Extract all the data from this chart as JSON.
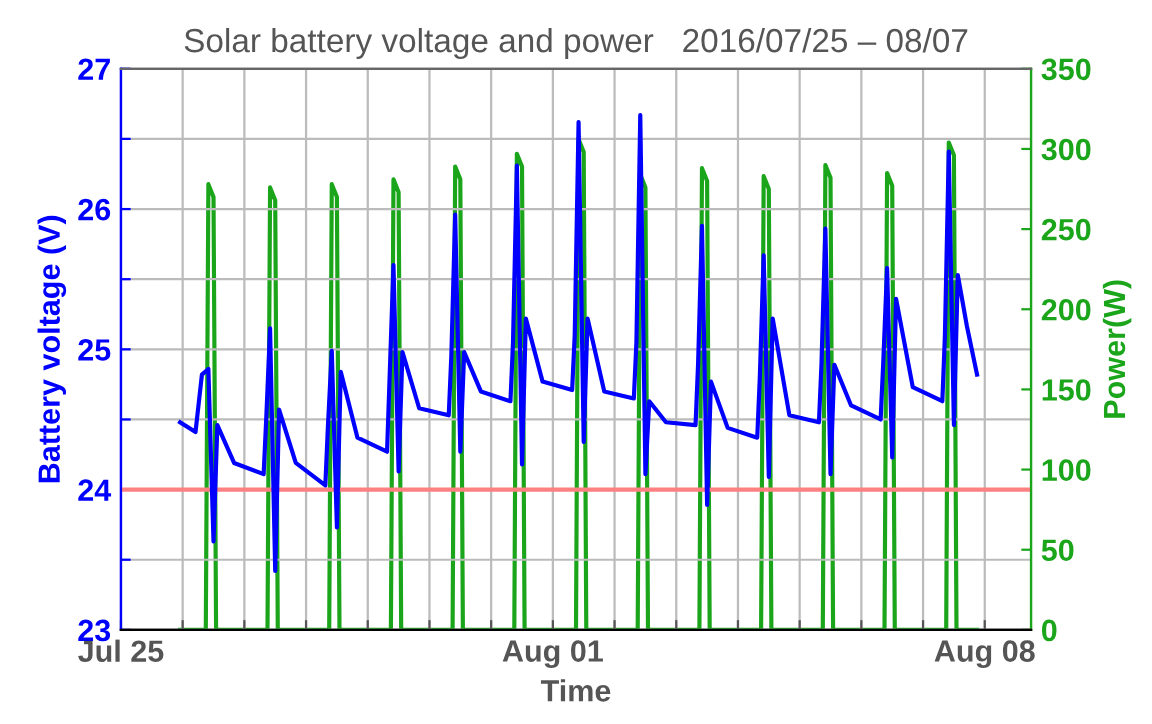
{
  "chart_data": {
    "type": "line",
    "title": "Solar battery voltage and power   2016/07/25 – 08/07",
    "xlabel": "Time",
    "ylabel": "Battery voltage (V)",
    "y2label": "Power(W)",
    "xlim": [
      "2016-07-25",
      "2016-08-08T18:00"
    ],
    "xticks": [
      {
        "value": "2016-07-25",
        "label": "Jul 25"
      },
      {
        "value": "2016-07-26",
        "label": null
      },
      {
        "value": "2016-07-27",
        "label": null
      },
      {
        "value": "2016-07-28",
        "label": null
      },
      {
        "value": "2016-07-29",
        "label": null
      },
      {
        "value": "2016-07-30",
        "label": null
      },
      {
        "value": "2016-07-31",
        "label": null
      },
      {
        "value": "2016-08-01",
        "label": "Aug 01"
      },
      {
        "value": "2016-08-02",
        "label": null
      },
      {
        "value": "2016-08-03",
        "label": null
      },
      {
        "value": "2016-08-04",
        "label": null
      },
      {
        "value": "2016-08-05",
        "label": null
      },
      {
        "value": "2016-08-06",
        "label": null
      },
      {
        "value": "2016-08-07",
        "label": null
      },
      {
        "value": "2016-08-08",
        "label": "Aug 08"
      }
    ],
    "ylim": [
      23,
      27
    ],
    "yticks": [
      23,
      {
        "value": 23.5,
        "label": null
      },
      24,
      {
        "value": 24.5,
        "label": null
      },
      25,
      {
        "value": 25.5,
        "label": null
      },
      26,
      {
        "value": 26.5,
        "label": null
      },
      27
    ],
    "y2lim": [
      0,
      350
    ],
    "y2ticks": [
      0,
      50,
      100,
      150,
      200,
      250,
      300,
      350
    ],
    "grid": true,
    "ref_lines": [
      {
        "axis": "y",
        "value": 24,
        "color": "#ff8080"
      }
    ],
    "series": [
      {
        "color": "#0000ff",
        "x": [
          "2016-07-25T23:00",
          "2016-07-26T05:00",
          "2016-07-26T07:30",
          "2016-07-26T10:00",
          "2016-07-26T12:00",
          "2016-07-26T13:30",
          "2016-07-26T20:00",
          "2016-07-27T07:30",
          "2016-07-27T08:30",
          "2016-07-27T10:00",
          "2016-07-27T12:00",
          "2016-07-27T13:30",
          "2016-07-27T20:00",
          "2016-07-28T07:30",
          "2016-07-28T08:30",
          "2016-07-28T10:00",
          "2016-07-28T12:00",
          "2016-07-28T13:30",
          "2016-07-28T20:00",
          "2016-07-29T07:30",
          "2016-07-29T08:30",
          "2016-07-29T10:00",
          "2016-07-29T12:00",
          "2016-07-29T13:30",
          "2016-07-29T20:00",
          "2016-07-30T07:30",
          "2016-07-30T08:30",
          "2016-07-30T10:00",
          "2016-07-30T12:00",
          "2016-07-30T13:30",
          "2016-07-30T20:00",
          "2016-07-31T07:30",
          "2016-07-31T08:30",
          "2016-07-31T10:00",
          "2016-07-31T12:00",
          "2016-07-31T13:30",
          "2016-07-31T20:00",
          "2016-08-01T07:30",
          "2016-08-01T08:30",
          "2016-08-01T10:00",
          "2016-08-01T12:00",
          "2016-08-01T13:30",
          "2016-08-01T20:00",
          "2016-08-02T07:30",
          "2016-08-02T08:30",
          "2016-08-02T10:00",
          "2016-08-02T12:00",
          "2016-08-02T13:30",
          "2016-08-02T20:00",
          "2016-08-03T07:30",
          "2016-08-03T08:30",
          "2016-08-03T10:00",
          "2016-08-03T12:00",
          "2016-08-03T13:30",
          "2016-08-03T20:00",
          "2016-08-04T07:30",
          "2016-08-04T08:30",
          "2016-08-04T10:00",
          "2016-08-04T12:00",
          "2016-08-04T13:30",
          "2016-08-04T20:00",
          "2016-08-05T07:30",
          "2016-08-05T08:30",
          "2016-08-05T10:00",
          "2016-08-05T12:00",
          "2016-08-05T13:30",
          "2016-08-05T20:00",
          "2016-08-06T07:30",
          "2016-08-06T08:30",
          "2016-08-06T10:00",
          "2016-08-06T12:00",
          "2016-08-06T13:30",
          "2016-08-06T20:00",
          "2016-08-07T07:30",
          "2016-08-07T08:30",
          "2016-08-07T10:00",
          "2016-08-07T12:00",
          "2016-08-07T13:30",
          "2016-08-07T17:00",
          "2016-08-07T21:00"
        ],
        "values": [
          24.48,
          24.41,
          24.82,
          24.86,
          23.63,
          24.46,
          24.19,
          24.11,
          24.5,
          25.15,
          23.42,
          24.57,
          24.19,
          24.03,
          24.45,
          24.99,
          23.73,
          24.84,
          24.37,
          24.27,
          24.8,
          25.6,
          24.13,
          24.98,
          24.58,
          24.53,
          24.95,
          25.96,
          24.27,
          24.98,
          24.7,
          24.63,
          25.05,
          26.31,
          24.18,
          25.22,
          24.77,
          24.71,
          25.1,
          26.62,
          24.34,
          25.22,
          24.7,
          24.65,
          25.05,
          26.67,
          24.11,
          24.63,
          24.48,
          24.46,
          24.9,
          25.88,
          23.89,
          24.77,
          24.44,
          24.37,
          24.8,
          25.67,
          24.09,
          25.22,
          24.53,
          24.48,
          24.9,
          25.86,
          24.11,
          24.89,
          24.6,
          24.5,
          24.9,
          25.58,
          24.23,
          25.36,
          24.73,
          24.63,
          25.1,
          26.41,
          24.46,
          25.53,
          25.17,
          24.82
        ]
      },
      {
        "color": "#1aa51a",
        "axis": "y2",
        "x": [
          "2016-07-25T23:00",
          "2016-07-26T09:00",
          "2016-07-26T10:00",
          "2016-07-26T12:00",
          "2016-07-26T13:00",
          "2016-07-27T09:00",
          "2016-07-27T10:00",
          "2016-07-27T12:00",
          "2016-07-27T13:00",
          "2016-07-28T09:00",
          "2016-07-28T10:00",
          "2016-07-28T12:00",
          "2016-07-28T13:00",
          "2016-07-29T09:00",
          "2016-07-29T10:00",
          "2016-07-29T12:00",
          "2016-07-29T13:00",
          "2016-07-30T09:00",
          "2016-07-30T10:00",
          "2016-07-30T12:00",
          "2016-07-30T13:00",
          "2016-07-31T09:00",
          "2016-07-31T10:00",
          "2016-07-31T12:00",
          "2016-07-31T13:00",
          "2016-08-01T09:00",
          "2016-08-01T10:00",
          "2016-08-01T12:00",
          "2016-08-01T13:00",
          "2016-08-02T09:00",
          "2016-08-02T10:00",
          "2016-08-02T12:00",
          "2016-08-02T13:00",
          "2016-08-03T09:00",
          "2016-08-03T10:00",
          "2016-08-03T12:00",
          "2016-08-03T13:00",
          "2016-08-04T09:00",
          "2016-08-04T10:00",
          "2016-08-04T12:00",
          "2016-08-04T13:00",
          "2016-08-05T09:00",
          "2016-08-05T10:00",
          "2016-08-05T12:00",
          "2016-08-05T13:00",
          "2016-08-06T09:00",
          "2016-08-06T10:00",
          "2016-08-06T12:00",
          "2016-08-06T13:00",
          "2016-08-07T09:00",
          "2016-08-07T10:00",
          "2016-08-07T12:00",
          "2016-08-07T13:00",
          "2016-08-07T21:00"
        ],
        "values": [
          0,
          0,
          278,
          270,
          0,
          0,
          276,
          268,
          0,
          0,
          278,
          270,
          0,
          0,
          281,
          273,
          0,
          0,
          289,
          281,
          0,
          0,
          297,
          289,
          0,
          0,
          306,
          298,
          0,
          0,
          284,
          276,
          0,
          0,
          288,
          280,
          0,
          0,
          283,
          275,
          0,
          0,
          290,
          282,
          0,
          0,
          285,
          277,
          0,
          0,
          304,
          296,
          0,
          0
        ]
      }
    ]
  }
}
